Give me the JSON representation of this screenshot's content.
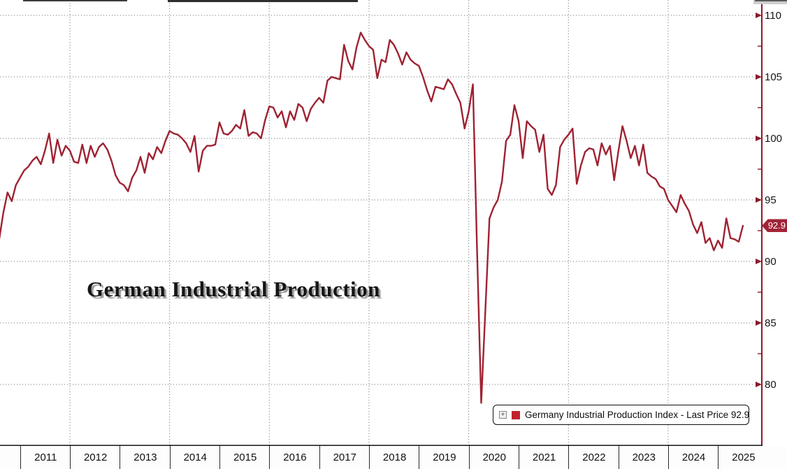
{
  "chart": {
    "title": "German Industrial Production",
    "legend": {
      "label": "Germany Industrial Production Index - Last Price 92.9",
      "expand_glyph": "+",
      "marker_color": "#C0212E"
    },
    "y_axis": {
      "ticks": [
        110,
        105,
        100,
        95,
        90,
        85,
        80
      ],
      "minor_ticks": [
        107.5,
        102.5,
        97.5,
        92.5,
        87.5,
        82.5
      ],
      "last_price_label": "92.9"
    },
    "x_axis": {
      "years": [
        "2011",
        "2012",
        "2013",
        "2014",
        "2015",
        "2016",
        "2017",
        "2018",
        "2019",
        "2020",
        "2021",
        "2022",
        "2023",
        "2024",
        "2025"
      ],
      "gridline_years": [
        2012,
        2014,
        2016,
        2018,
        2020,
        2022,
        2024
      ]
    },
    "colors": {
      "line": "#9F2232",
      "axis": "#8C1A28",
      "badge_bg": "#A22438",
      "badge_text": "#FFFFFF",
      "grid_dots": "#6E6E6E",
      "x_axis_line": "#141414"
    }
  },
  "chart_data": {
    "type": "line",
    "title": "German Industrial Production",
    "frequency": "monthly",
    "x_start": "2010-08",
    "x_end": "2025-07",
    "x_tick_years": [
      2011,
      2012,
      2013,
      2014,
      2015,
      2016,
      2017,
      2018,
      2019,
      2020,
      2021,
      2022,
      2023,
      2024,
      2025
    ],
    "y_ticks": [
      80,
      85,
      90,
      95,
      100,
      105,
      110
    ],
    "ylim_visible": [
      75.1,
      111.3
    ],
    "grid": "dotted",
    "legend_position": "bottom-right",
    "series": [
      {
        "name": "Germany Industrial Production Index",
        "last_price": 92.9,
        "color": "#9F2232",
        "values": [
          91.8,
          94.0,
          95.6,
          94.9,
          96.2,
          96.8,
          97.4,
          97.7,
          98.2,
          98.5,
          97.9,
          99.0,
          100.4,
          98.0,
          99.9,
          98.6,
          99.4,
          99.0,
          98.1,
          98.0,
          99.5,
          98.0,
          99.4,
          98.5,
          99.3,
          99.6,
          99.1,
          98.2,
          97.0,
          96.4,
          96.2,
          95.7,
          96.8,
          97.4,
          98.5,
          97.2,
          98.8,
          98.3,
          99.3,
          98.8,
          99.8,
          100.6,
          100.4,
          100.3,
          100.0,
          99.6,
          98.9,
          100.2,
          97.3,
          99.0,
          99.4,
          99.4,
          99.5,
          101.3,
          100.4,
          100.3,
          100.6,
          101.1,
          100.8,
          102.3,
          100.2,
          100.5,
          100.4,
          100.0,
          101.5,
          102.6,
          102.5,
          101.7,
          102.2,
          100.9,
          102.2,
          101.5,
          102.8,
          102.5,
          101.4,
          102.4,
          102.9,
          103.3,
          102.9,
          104.7,
          105.0,
          104.9,
          104.8,
          107.6,
          106.3,
          105.6,
          107.4,
          108.6,
          108.0,
          107.5,
          107.2,
          104.9,
          106.4,
          106.2,
          108.0,
          107.6,
          106.9,
          106.0,
          107.0,
          106.4,
          106.1,
          105.9,
          105.0,
          103.9,
          103.0,
          104.2,
          104.1,
          104.0,
          104.8,
          104.4,
          103.6,
          102.9,
          100.8,
          102.2,
          104.4,
          91.0,
          78.5,
          86.0,
          93.5,
          94.4,
          95.0,
          96.5,
          99.8,
          100.3,
          102.7,
          101.4,
          98.4,
          101.4,
          101.0,
          100.7,
          98.9,
          100.3,
          95.9,
          95.4,
          96.2,
          99.3,
          99.9,
          100.3,
          100.8,
          96.3,
          97.8,
          98.9,
          99.2,
          99.1,
          97.8,
          99.6,
          98.7,
          99.4,
          96.6,
          98.9,
          101.0,
          99.8,
          98.4,
          99.4,
          97.8,
          99.5,
          97.2,
          96.9,
          96.7,
          96.1,
          95.9,
          95.0,
          94.5,
          94.0,
          95.4,
          94.7,
          94.1,
          93.0,
          92.3,
          93.2,
          91.5,
          91.9,
          90.9,
          91.7,
          91.1,
          93.5,
          91.9,
          91.8,
          91.6,
          92.9
        ]
      }
    ]
  }
}
